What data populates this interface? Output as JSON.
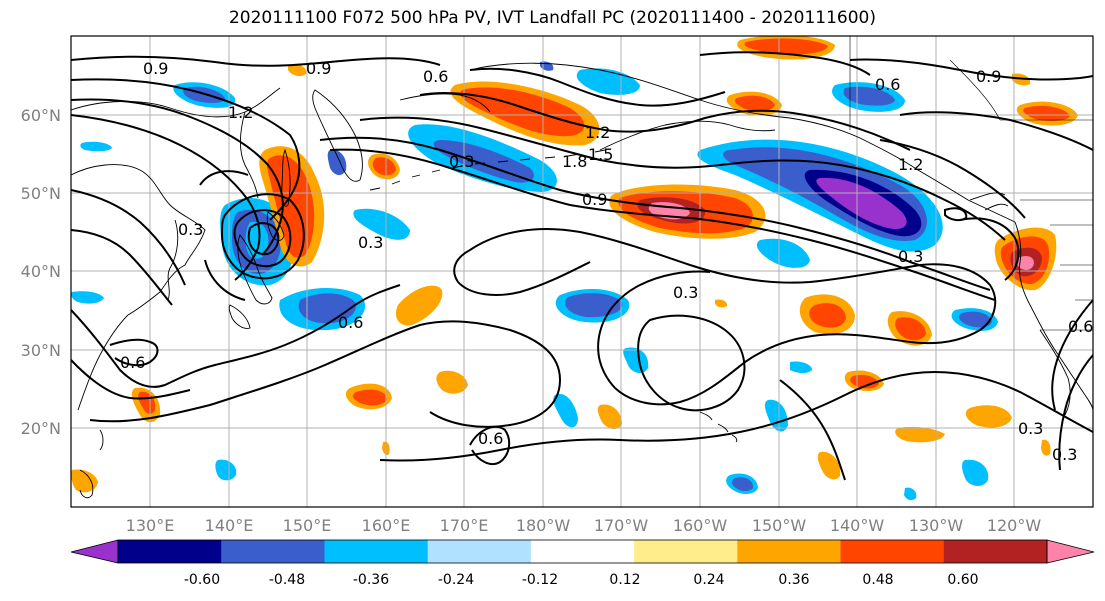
{
  "title": "2020111100 F072 500 hPa PV, IVT Landfall PC (2020111400 - 2020111600)",
  "lat_labels": [
    "60°N",
    "50°N",
    "40°N",
    "30°N",
    "20°N"
  ],
  "lon_labels": [
    "130°E",
    "140°E",
    "150°E",
    "160°E",
    "170°E",
    "180°W",
    "170°W",
    "160°W",
    "150°W",
    "140°W",
    "130°W",
    "120°W"
  ],
  "colorbar": {
    "colors": [
      "#9932CC",
      "#00008B",
      "#3A5FCD",
      "#00BFFF",
      "#B0E2FF",
      "#FFFFFF",
      "#FFEC8B",
      "#FFA500",
      "#FF4500",
      "#B22222",
      "#FF82AB"
    ],
    "labels": [
      "-0.60",
      "-0.48",
      "-0.36",
      "-0.24",
      "-0.12",
      "0.12",
      "0.24",
      "0.36",
      "0.48",
      "0.60"
    ]
  },
  "contour_labels": [
    "0.9",
    "0.9",
    "0.6",
    "1.2",
    "0.3",
    "0.3",
    "0.6",
    "0.6",
    "0.3",
    "0.9",
    "1.2",
    "1.5",
    "1.8",
    "0.6",
    "0.9",
    "1.2",
    "0.3",
    "0.6",
    "0.3",
    "0.3",
    "0.6",
    "0.3"
  ]
}
